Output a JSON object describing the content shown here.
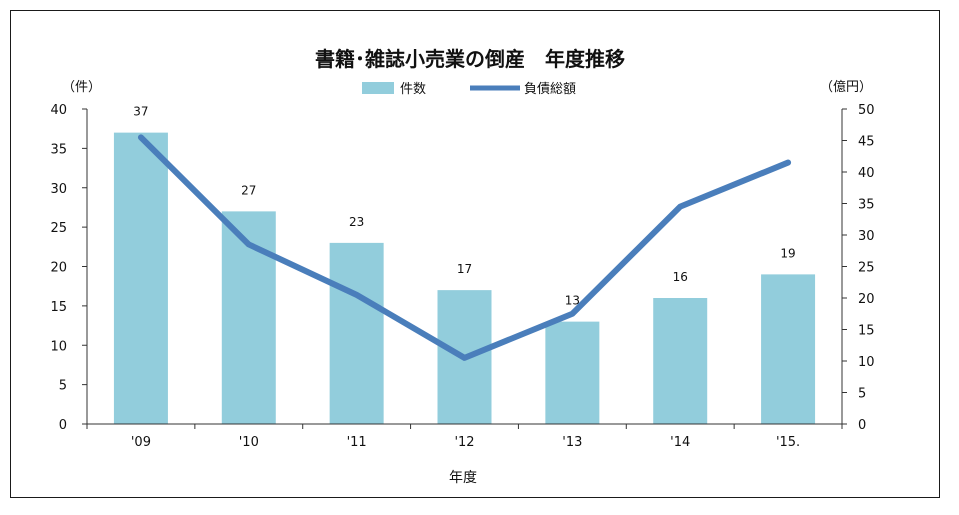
{
  "chart_data": {
    "type": "bar",
    "title": "書籍･雑誌小売業の倒産　年度推移",
    "categories": [
      "'09",
      "'10",
      "'11",
      "'12",
      "'13",
      "'14",
      "'15."
    ],
    "series": [
      {
        "name": "件数",
        "type": "bar",
        "axis": "left",
        "color": "#92cddc",
        "values": [
          37,
          27,
          23,
          17,
          13,
          16,
          19
        ]
      },
      {
        "name": "負債総額",
        "type": "line",
        "axis": "right",
        "color": "#4a7ebb",
        "values": [
          45.5,
          28.5,
          20.5,
          10.5,
          17.5,
          34.5,
          41.5
        ]
      }
    ],
    "xlabel": "年度",
    "ylabel_left": "（件）",
    "ylabel_right": "（億円）",
    "ylim_left": [
      0,
      40
    ],
    "ylim_right": [
      0,
      50
    ],
    "yticks_left": [
      "0",
      "5",
      "10",
      "15",
      "20",
      "25",
      "30",
      "35",
      "40"
    ],
    "yticks_right": [
      "0",
      "5",
      "10",
      "15",
      "20",
      "25",
      "30",
      "35",
      "40",
      "45",
      "50"
    ],
    "grid": false,
    "legend_position": "top-center"
  }
}
